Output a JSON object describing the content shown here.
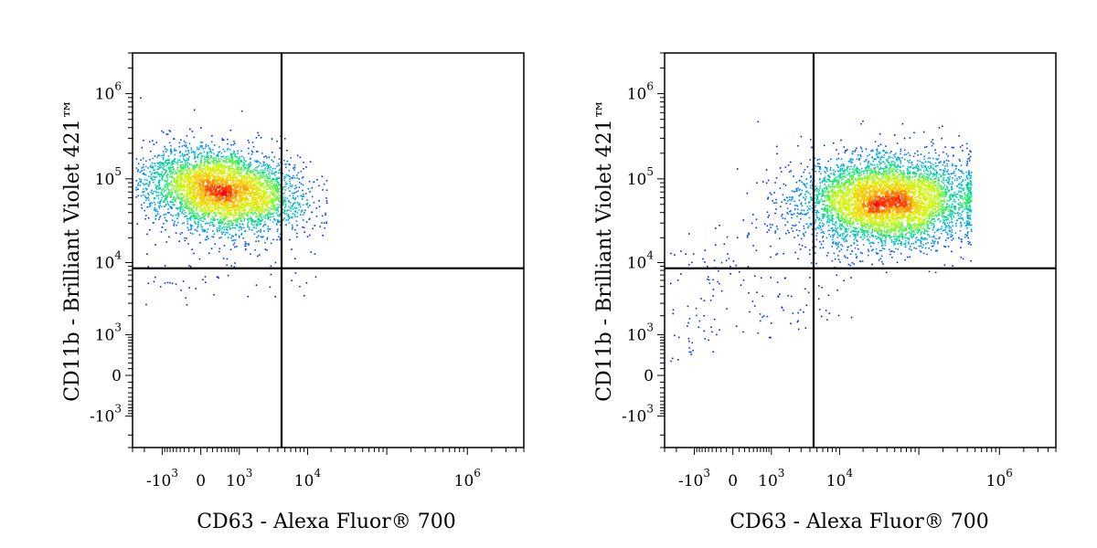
{
  "chart_data": [
    {
      "type": "scatter",
      "style": "density-colored flow cytometry dot plot",
      "xlabel": "CD63 - Alexa Fluor® 700",
      "ylabel": "CD11b - Brilliant Violet 421™",
      "x_scale": "biexponential",
      "y_scale": "biexponential",
      "xlim": [
        -3000,
        5000000
      ],
      "ylim": [
        -3000,
        3000000
      ],
      "x_ticks": [
        {
          "value": -1000,
          "base": "-10",
          "exp": "3"
        },
        {
          "value": 0,
          "base": "0",
          "exp": ""
        },
        {
          "value": 1000,
          "base": "10",
          "exp": "3"
        },
        {
          "value": 10000,
          "base": "10",
          "exp": "4"
        },
        {
          "value": 1000000,
          "base": "10",
          "exp": "6"
        }
      ],
      "y_ticks": [
        {
          "value": -1000,
          "base": "-10",
          "exp": "3"
        },
        {
          "value": 0,
          "base": "0",
          "exp": ""
        },
        {
          "value": 1000,
          "base": "10",
          "exp": "3"
        },
        {
          "value": 10000,
          "base": "10",
          "exp": "4"
        },
        {
          "value": 100000,
          "base": "10",
          "exp": "5"
        },
        {
          "value": 1000000,
          "base": "10",
          "exp": "6"
        }
      ],
      "gate": {
        "x": 4500,
        "y": 8500
      },
      "population": {
        "center_x": 1300,
        "center_y": 70000,
        "color_scale": [
          "#0000ff",
          "#00b0ff",
          "#00ff60",
          "#ffff00",
          "#ff0000"
        ]
      }
    },
    {
      "type": "scatter",
      "style": "density-colored flow cytometry dot plot",
      "xlabel": "CD63 - Alexa Fluor® 700",
      "ylabel": "CD11b - Brilliant Violet 421™",
      "x_scale": "biexponential",
      "y_scale": "biexponential",
      "xlim": [
        -3000,
        5000000
      ],
      "ylim": [
        -3000,
        3000000
      ],
      "x_ticks": [
        {
          "value": -1000,
          "base": "-10",
          "exp": "3"
        },
        {
          "value": 0,
          "base": "0",
          "exp": ""
        },
        {
          "value": 1000,
          "base": "10",
          "exp": "3"
        },
        {
          "value": 10000,
          "base": "10",
          "exp": "4"
        },
        {
          "value": 1000000,
          "base": "10",
          "exp": "6"
        }
      ],
      "y_ticks": [
        {
          "value": -1000,
          "base": "-10",
          "exp": "3"
        },
        {
          "value": 0,
          "base": "0",
          "exp": ""
        },
        {
          "value": 1000,
          "base": "10",
          "exp": "3"
        },
        {
          "value": 10000,
          "base": "10",
          "exp": "4"
        },
        {
          "value": 100000,
          "base": "10",
          "exp": "5"
        },
        {
          "value": 1000000,
          "base": "10",
          "exp": "6"
        }
      ],
      "gate": {
        "x": 4500,
        "y": 8500
      },
      "population": {
        "center_x": 60000,
        "center_y": 55000,
        "color_scale": [
          "#0000ff",
          "#00b0ff",
          "#00ff60",
          "#ffff00",
          "#ff0000"
        ]
      }
    }
  ]
}
